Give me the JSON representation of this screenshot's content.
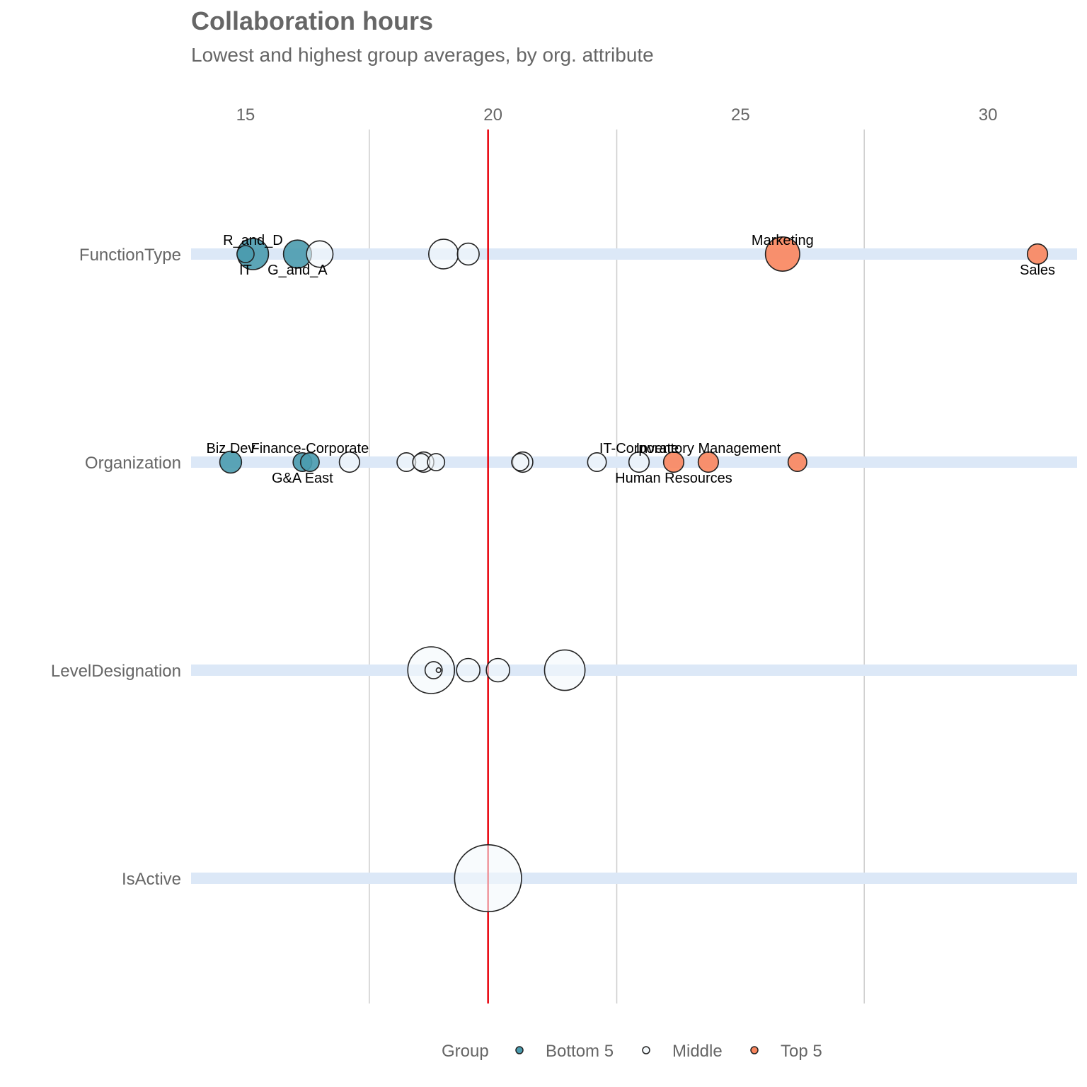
{
  "colors": {
    "bottom": "#4A9BAE",
    "middle": "#F4F9FC",
    "top": "#F9855D",
    "reference_line": "#E8000B",
    "band": "#DCE8F7",
    "grid": "#CCCCCC",
    "stroke": "#222222"
  },
  "chart_data": {
    "type": "scatter",
    "title": "Collaboration hours",
    "subtitle": "Lowest and highest group averages, by org. attribute",
    "x_ticks": [
      15,
      20,
      25,
      30
    ],
    "xlim": [
      13.9,
      31.8
    ],
    "reference_x": 19.9,
    "categories": [
      "FunctionType",
      "Organization",
      "LevelDesignation",
      "IsActive"
    ],
    "legend": {
      "title": "Group",
      "position": "bottom",
      "items": [
        {
          "label": "Bottom 5",
          "group": "bottom"
        },
        {
          "label": "Middle",
          "group": "middle"
        },
        {
          "label": "Top 5",
          "group": "top"
        }
      ]
    },
    "points": [
      {
        "category": "FunctionType",
        "x": 15.15,
        "size": 20,
        "group": "bottom",
        "label": "R_and_D",
        "label_pos": "above"
      },
      {
        "category": "FunctionType",
        "x": 15.0,
        "size": 11,
        "group": "bottom",
        "label": "IT",
        "label_pos": "below"
      },
      {
        "category": "FunctionType",
        "x": 16.05,
        "size": 18,
        "group": "bottom",
        "label": "G_and_A",
        "label_pos": "below"
      },
      {
        "category": "FunctionType",
        "x": 16.5,
        "size": 17,
        "group": "middle"
      },
      {
        "category": "FunctionType",
        "x": 19.0,
        "size": 19,
        "group": "middle"
      },
      {
        "category": "FunctionType",
        "x": 19.5,
        "size": 14,
        "group": "middle"
      },
      {
        "category": "FunctionType",
        "x": 25.85,
        "size": 22,
        "group": "top",
        "label": "Marketing",
        "label_pos": "above"
      },
      {
        "category": "FunctionType",
        "x": 31.0,
        "size": 13,
        "group": "top",
        "label": "Sales",
        "label_pos": "below"
      },
      {
        "category": "Organization",
        "x": 14.7,
        "size": 14,
        "group": "bottom",
        "label": "Biz Dev",
        "label_pos": "above"
      },
      {
        "category": "Organization",
        "x": 16.15,
        "size": 12,
        "group": "bottom",
        "label": "G&A East",
        "label_pos": "below"
      },
      {
        "category": "Organization",
        "x": 16.3,
        "size": 12,
        "group": "bottom",
        "label": "Finance-Corporate",
        "label_pos": "above"
      },
      {
        "category": "Organization",
        "x": 17.1,
        "size": 13,
        "group": "middle"
      },
      {
        "category": "Organization",
        "x": 18.25,
        "size": 12,
        "group": "middle"
      },
      {
        "category": "Organization",
        "x": 18.6,
        "size": 13,
        "group": "middle"
      },
      {
        "category": "Organization",
        "x": 18.55,
        "size": 11,
        "group": "middle"
      },
      {
        "category": "Organization",
        "x": 18.85,
        "size": 11,
        "group": "middle"
      },
      {
        "category": "Organization",
        "x": 20.6,
        "size": 13,
        "group": "middle"
      },
      {
        "category": "Organization",
        "x": 20.55,
        "size": 11,
        "group": "middle"
      },
      {
        "category": "Organization",
        "x": 22.1,
        "size": 12,
        "group": "middle"
      },
      {
        "category": "Organization",
        "x": 22.95,
        "size": 13,
        "group": "middle",
        "label": "IT-Corporate",
        "label_pos": "above"
      },
      {
        "category": "Organization",
        "x": 23.65,
        "size": 13,
        "group": "top",
        "label": "Human Resources",
        "label_pos": "below"
      },
      {
        "category": "Organization",
        "x": 24.35,
        "size": 13,
        "group": "top",
        "label": "Inventory Management",
        "label_pos": "above"
      },
      {
        "category": "Organization",
        "x": 26.15,
        "size": 12,
        "group": "top"
      },
      {
        "category": "LevelDesignation",
        "x": 18.75,
        "size": 30,
        "group": "middle"
      },
      {
        "category": "LevelDesignation",
        "x": 18.8,
        "size": 11,
        "group": "middle"
      },
      {
        "category": "LevelDesignation",
        "x": 18.9,
        "size": 3,
        "group": "middle"
      },
      {
        "category": "LevelDesignation",
        "x": 19.5,
        "size": 15,
        "group": "middle"
      },
      {
        "category": "LevelDesignation",
        "x": 20.1,
        "size": 15,
        "group": "middle"
      },
      {
        "category": "LevelDesignation",
        "x": 21.45,
        "size": 26,
        "group": "middle"
      },
      {
        "category": "IsActive",
        "x": 19.9,
        "size": 43,
        "group": "middle"
      }
    ]
  }
}
